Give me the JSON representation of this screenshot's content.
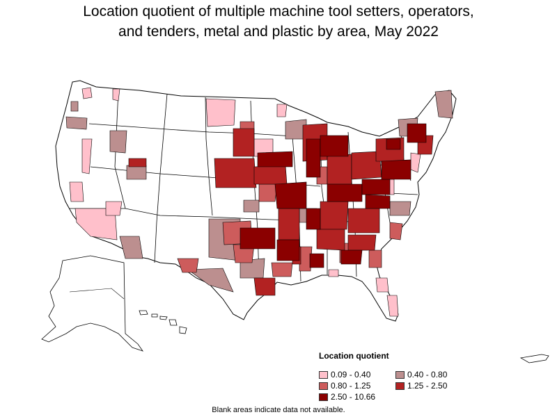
{
  "title": {
    "line1": "Location quotient of multiple machine tool setters, operators,",
    "line2": "and tenders, metal and plastic by area, May 2022"
  },
  "legend": {
    "title": "Location quotient",
    "items": [
      {
        "label": "0.09 - 0.40",
        "color": "#ffc0cb"
      },
      {
        "label": "0.40 - 0.80",
        "color": "#bc8f8f"
      },
      {
        "label": "0.80 - 1.25",
        "color": "#cd5c5c"
      },
      {
        "label": "1.25 - 2.50",
        "color": "#b22222"
      },
      {
        "label": "2.50 - 10.66",
        "color": "#8b0000"
      }
    ]
  },
  "footnote": "Blank areas indicate data not available.",
  "map": {
    "colors": {
      "blank": "#ffffff",
      "outline": "#000000",
      "c1": "#ffc0cb",
      "c2": "#bc8f8f",
      "c3": "#cd5c5c",
      "c4": "#b22222",
      "c5": "#8b0000"
    }
  }
}
